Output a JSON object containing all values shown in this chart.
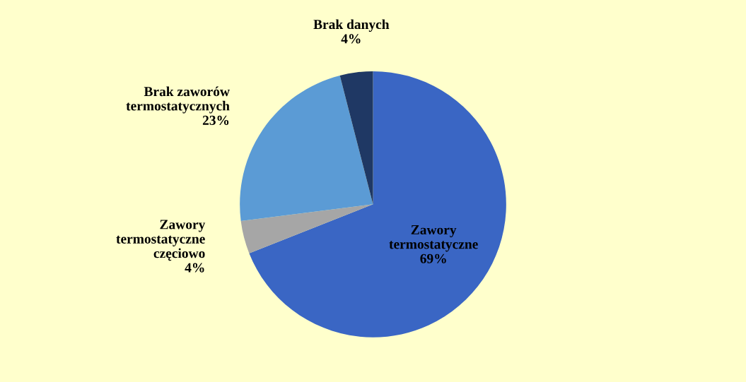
{
  "chart_data": {
    "type": "pie",
    "categories": [
      "Zawory\ntermostatyczne",
      "Zawory\ntermostatyczne\nczęciowo",
      "Brak zaworów\ntermostatycznych",
      "Brak danych"
    ],
    "values": [
      69,
      4,
      23,
      4
    ],
    "value_labels": [
      "69%",
      "4%",
      "23%",
      "4%"
    ],
    "colors": [
      "#3a66c4",
      "#a6a6a6",
      "#5b9bd5",
      "#1f3864"
    ],
    "legend": false
  }
}
